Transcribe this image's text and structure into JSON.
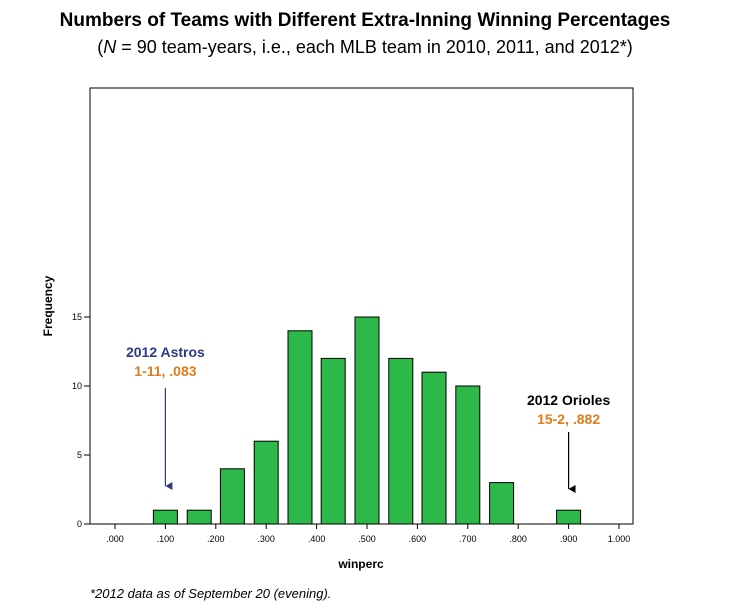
{
  "title": "Numbers of Teams with Different Extra-Inning Winning Percentages",
  "subtitle": {
    "open": "(",
    "n_symbol": "N",
    "rest": " = 90 team-years, i.e., each MLB team in 2010, 2011, and 2012*)"
  },
  "footnote": "*2012 data as of September 20 (evening).",
  "colors": {
    "bar_fill": "#2db84a",
    "bar_stroke": "#000000",
    "astros_label": "#2e3a87",
    "orange_label": "#e07b1a",
    "orioles_label": "#000000"
  },
  "chart_data": {
    "type": "bar",
    "xlabel": "winperc",
    "ylabel": "Frequency",
    "x_ticks": [
      ".000",
      ".100",
      ".200",
      ".300",
      ".400",
      ".500",
      ".600",
      ".700",
      ".800",
      ".900",
      "1.000"
    ],
    "y_ticks": [
      "0",
      "5",
      "10",
      "15"
    ],
    "xlim": [
      0.0,
      1.0
    ],
    "ylim": [
      0,
      16
    ],
    "grid": false,
    "bins": [
      {
        "center": 0.1,
        "value": 1
      },
      {
        "center": 0.167,
        "value": 1
      },
      {
        "center": 0.233,
        "value": 4
      },
      {
        "center": 0.3,
        "value": 6
      },
      {
        "center": 0.367,
        "value": 14
      },
      {
        "center": 0.433,
        "value": 12
      },
      {
        "center": 0.5,
        "value": 15
      },
      {
        "center": 0.567,
        "value": 12
      },
      {
        "center": 0.633,
        "value": 11
      },
      {
        "center": 0.7,
        "value": 10
      },
      {
        "center": 0.767,
        "value": 3
      },
      {
        "center": 0.9,
        "value": 1
      }
    ],
    "annotations": [
      {
        "line1": "2012 Astros",
        "line2": "1-11, .083",
        "x": 0.1,
        "y": 1
      },
      {
        "line1": "2012 Orioles",
        "line2": "15-2, .882",
        "x": 0.9,
        "y": 1
      }
    ]
  }
}
